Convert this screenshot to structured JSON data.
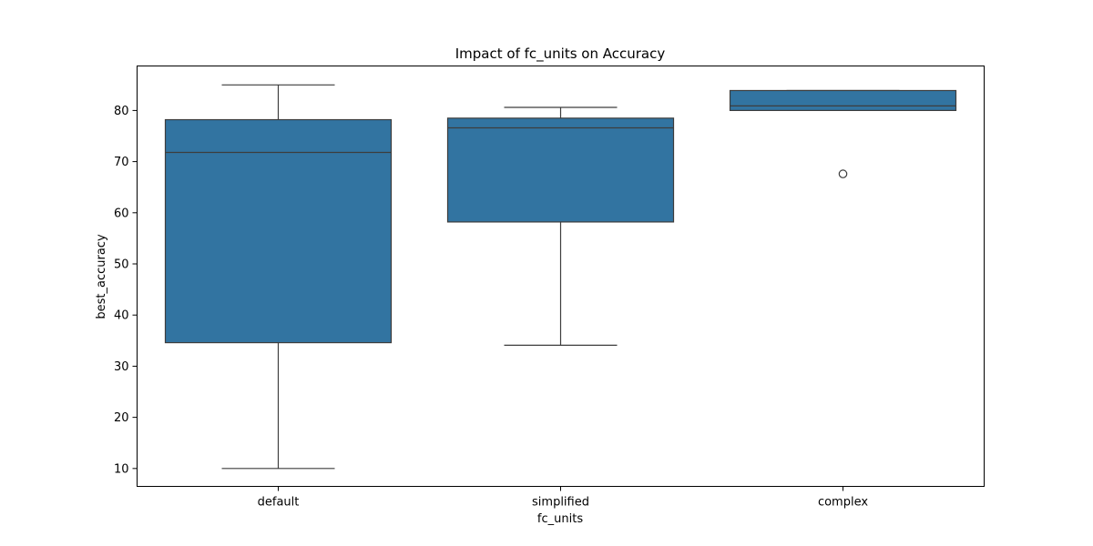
{
  "chart_data": {
    "type": "box",
    "title": "Impact of fc_units on Accuracy",
    "xlabel": "fc_units",
    "ylabel": "best_accuracy",
    "categories": [
      "default",
      "simplified",
      "complex"
    ],
    "ylim": [
      6.5,
      88.7
    ],
    "yticks": [
      10,
      20,
      30,
      40,
      50,
      60,
      70,
      80
    ],
    "grid": false,
    "legend": "none",
    "box_color": "#3274a1",
    "line_color": "#3d3d3d",
    "boxes": [
      {
        "category": "default",
        "whisker_low": 10.0,
        "q1": 34.6,
        "median": 71.8,
        "q3": 78.2,
        "whisker_high": 85.0,
        "outliers": []
      },
      {
        "category": "simplified",
        "whisker_low": 34.1,
        "q1": 58.2,
        "median": 76.6,
        "q3": 78.5,
        "whisker_high": 80.6,
        "outliers": []
      },
      {
        "category": "complex",
        "whisker_low": 80.0,
        "q1": 80.0,
        "median": 80.9,
        "q3": 83.9,
        "whisker_high": 83.9,
        "outliers": [
          67.6
        ]
      }
    ]
  }
}
